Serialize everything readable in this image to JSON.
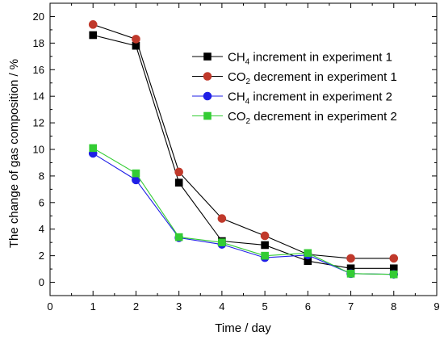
{
  "chart_data": {
    "type": "line",
    "xlabel": "Time / day",
    "ylabel": "The change of gas composition / %",
    "xlim": [
      0,
      9
    ],
    "ylim": [
      -1,
      21
    ],
    "xticks": [
      0,
      1,
      2,
      3,
      4,
      5,
      6,
      7,
      8,
      9
    ],
    "yticks": [
      0,
      2,
      4,
      6,
      8,
      10,
      12,
      14,
      16,
      18,
      20
    ],
    "grid": false,
    "legend_position": "top-right",
    "x": [
      1,
      2,
      3,
      4,
      5,
      6,
      7,
      8
    ],
    "series": [
      {
        "name": "CH4 increment in experiment 1",
        "legend_main": "CH",
        "legend_sub": "4",
        "legend_rest": " increment in experiment 1",
        "color": "#000000",
        "line_color": "#000000",
        "marker": "square",
        "values": [
          18.6,
          17.8,
          7.5,
          3.1,
          2.8,
          1.6,
          1.05,
          1.05
        ]
      },
      {
        "name": "CO2 decrement in experiment 1",
        "legend_main": "CO",
        "legend_sub": "2",
        "legend_rest": " decrement in experiment 1",
        "color": "#c0392b",
        "line_color": "#000000",
        "marker": "circle",
        "values": [
          19.4,
          18.3,
          8.3,
          4.8,
          3.5,
          2.1,
          1.8,
          1.8
        ]
      },
      {
        "name": "CH4 increment in experiment 2",
        "legend_main": "CH",
        "legend_sub": "4",
        "legend_rest": " increment in experiment 2",
        "color": "#1f1fe6",
        "line_color": "#1f1fe6",
        "marker": "circle",
        "values": [
          9.7,
          7.7,
          3.35,
          2.85,
          1.85,
          2.05,
          0.65,
          0.6
        ]
      },
      {
        "name": "CO2 decrement in experiment 2",
        "legend_main": "CO",
        "legend_sub": "2",
        "legend_rest": " decrement in experiment 2",
        "color": "#33cc33",
        "line_color": "#33cc33",
        "marker": "square",
        "values": [
          10.1,
          8.2,
          3.4,
          3.0,
          2.0,
          2.2,
          0.65,
          0.6
        ]
      }
    ]
  }
}
